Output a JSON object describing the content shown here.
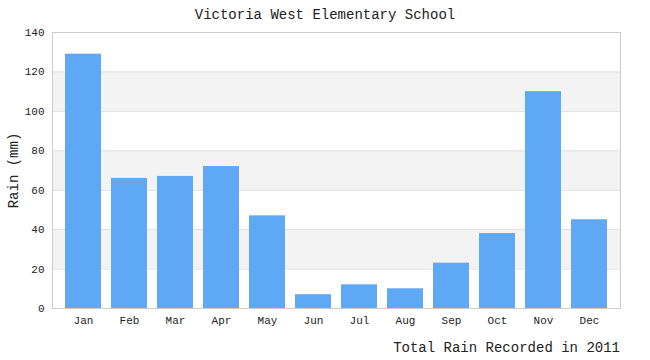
{
  "chart_data": {
    "type": "bar",
    "title": "Victoria West Elementary School",
    "caption": "Total Rain Recorded in 2011",
    "y_label": "Rain (mm)",
    "categories": [
      "Jan",
      "Feb",
      "Mar",
      "Apr",
      "May",
      "Jun",
      "Jul",
      "Aug",
      "Sep",
      "Oct",
      "Nov",
      "Dec"
    ],
    "values": [
      129,
      66,
      67,
      72,
      47,
      7,
      12,
      10,
      23,
      38,
      110,
      45
    ],
    "color": "#5fa8f5",
    "ylim": [
      0,
      140
    ],
    "yticks": [
      0,
      20,
      40,
      60,
      80,
      100,
      120,
      140
    ],
    "grid": true
  }
}
